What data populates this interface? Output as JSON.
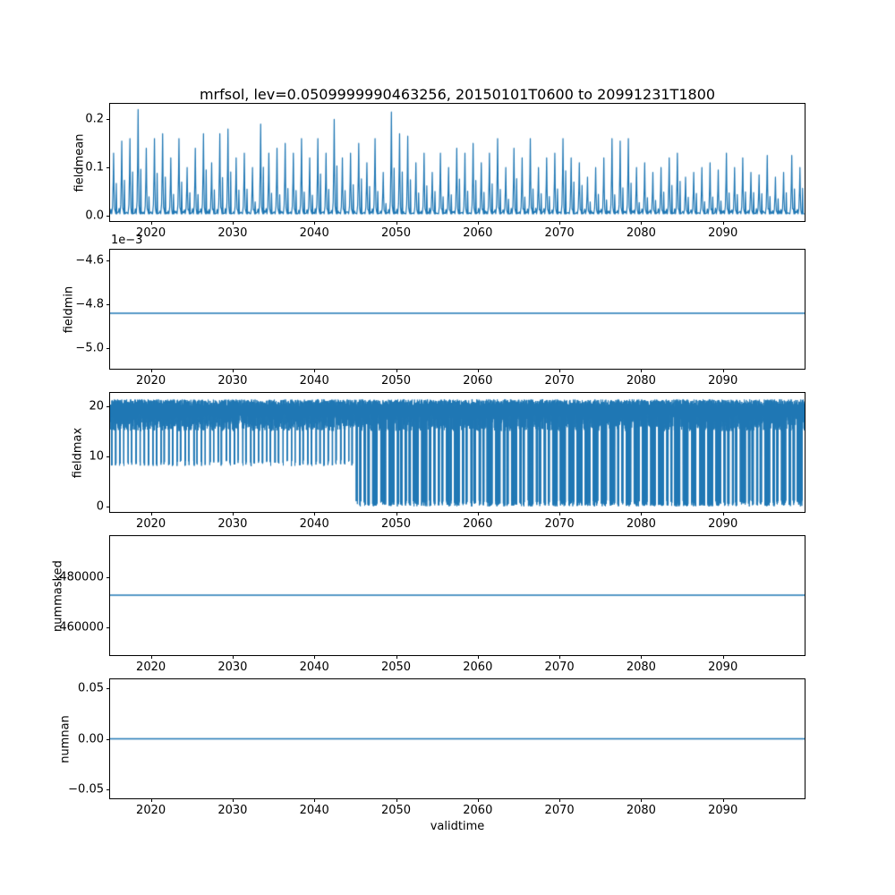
{
  "figure": {
    "title": "mrfsol, lev=0.0509999990463256, 20150101T0600 to 20991231T1800",
    "xlabel": "validtime",
    "line_color": "#1f77b4",
    "x_range": [
      2015,
      2100
    ],
    "x_ticks": [
      {
        "v": 2020,
        "label": "2020"
      },
      {
        "v": 2030,
        "label": "2030"
      },
      {
        "v": 2040,
        "label": "2040"
      },
      {
        "v": 2050,
        "label": "2050"
      },
      {
        "v": 2060,
        "label": "2060"
      },
      {
        "v": 2070,
        "label": "2070"
      },
      {
        "v": 2080,
        "label": "2080"
      },
      {
        "v": 2090,
        "label": "2090"
      }
    ]
  },
  "chart_data": [
    {
      "name": "fieldmean",
      "type": "line",
      "ylabel": "fieldmean",
      "ylim": [
        -0.011,
        0.232
      ],
      "yticks": [
        {
          "v": 0.0,
          "label": "0.0"
        },
        {
          "v": 0.1,
          "label": "0.1"
        },
        {
          "v": 0.2,
          "label": "0.2"
        }
      ],
      "series": {
        "kind": "annual_spikes",
        "baseline": 0.004,
        "secondary_ratio": 0.45,
        "x_start": 2015,
        "peaks": [
          0.13,
          0.155,
          0.16,
          0.22,
          0.14,
          0.16,
          0.17,
          0.12,
          0.16,
          0.1,
          0.14,
          0.17,
          0.11,
          0.17,
          0.18,
          0.12,
          0.13,
          0.1,
          0.19,
          0.13,
          0.14,
          0.15,
          0.13,
          0.16,
          0.12,
          0.16,
          0.13,
          0.2,
          0.12,
          0.13,
          0.15,
          0.11,
          0.16,
          0.09,
          0.215,
          0.17,
          0.165,
          0.11,
          0.13,
          0.09,
          0.13,
          0.1,
          0.14,
          0.13,
          0.15,
          0.11,
          0.13,
          0.16,
          0.1,
          0.14,
          0.12,
          0.16,
          0.1,
          0.12,
          0.13,
          0.16,
          0.12,
          0.11,
          0.08,
          0.1,
          0.12,
          0.16,
          0.155,
          0.16,
          0.1,
          0.11,
          0.09,
          0.1,
          0.12,
          0.13,
          0.08,
          0.09,
          0.1,
          0.11,
          0.095,
          0.13,
          0.1,
          0.12,
          0.09,
          0.085,
          0.125,
          0.08,
          0.09,
          0.125,
          0.1
        ]
      }
    },
    {
      "name": "fieldmin",
      "type": "line",
      "ylabel": "fieldmin",
      "offset_text": "1e−3",
      "units": "1e-3",
      "ylim": [
        -5.092,
        -4.552
      ],
      "yticks": [
        {
          "v": -4.6,
          "label": "−4.6"
        },
        {
          "v": -4.8,
          "label": "−4.8"
        },
        {
          "v": -5.0,
          "label": "−5.0"
        }
      ],
      "series": {
        "kind": "constant",
        "value": -4.84
      }
    },
    {
      "name": "fieldmax",
      "type": "line",
      "ylabel": "fieldmax",
      "ylim": [
        -1.1,
        22.6
      ],
      "yticks": [
        {
          "v": 0,
          "label": "0"
        },
        {
          "v": 10,
          "label": "10"
        },
        {
          "v": 20,
          "label": "20"
        }
      ],
      "series": {
        "kind": "dense_oscillation",
        "top_max": 21.5,
        "top_min": 15.0,
        "dip_value_early": 8.0,
        "dip_value_late": 0.0,
        "transition_year": 2045,
        "x_start": 2015,
        "n_years": 85
      }
    },
    {
      "name": "nummasked",
      "type": "line",
      "ylabel": "nummasked",
      "ylim": [
        449100,
        496500
      ],
      "yticks": [
        {
          "v": 460000,
          "label": "460000"
        },
        {
          "v": 480000,
          "label": "480000"
        }
      ],
      "series": {
        "kind": "constant",
        "value": 473000
      }
    },
    {
      "name": "numnan",
      "type": "line",
      "ylabel": "numnan",
      "ylim": [
        -0.0585,
        0.0585
      ],
      "yticks": [
        {
          "v": -0.05,
          "label": "−0.05"
        },
        {
          "v": 0.0,
          "label": "0.00"
        },
        {
          "v": 0.05,
          "label": "0.05"
        }
      ],
      "series": {
        "kind": "constant",
        "value": 0.0
      }
    }
  ]
}
